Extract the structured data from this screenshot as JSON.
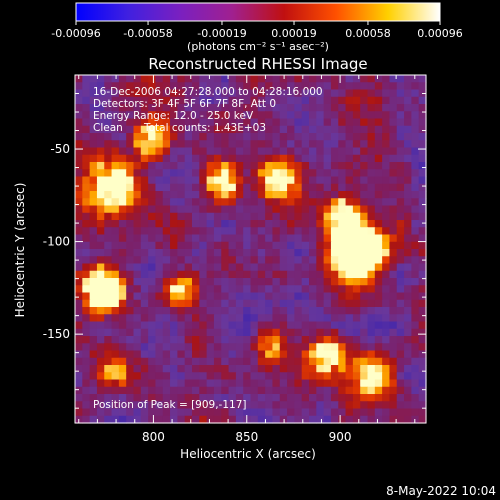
{
  "colorbar": {
    "tick_labels": [
      "-0.00096",
      "-0.00058",
      "-0.00019",
      "0.00019",
      "0.00058",
      "0.00096"
    ],
    "tick_values": [
      -0.00096,
      -0.00058,
      -0.00019,
      0.00019,
      0.00058,
      0.00096
    ],
    "range": [
      -0.00096,
      0.00096
    ],
    "unit_label": "(photons cm⁻² s⁻¹ asec⁻²)",
    "gradient_colors": [
      "#0000ff",
      "#4020e0",
      "#7a20c0",
      "#a02090",
      "#c01010",
      "#ff5000",
      "#ffd000",
      "#ffffff"
    ]
  },
  "chart_data": {
    "type": "heatmap",
    "title": "Reconstructed RHESSI Image",
    "xlabel": "Heliocentric X (arcsec)",
    "ylabel": "Heliocentric Y (arcsec)",
    "xlim": [
      758,
      946
    ],
    "ylim": [
      -198,
      -10
    ],
    "x_ticks": [
      800,
      850,
      900
    ],
    "x_tick_labels": [
      "800",
      "850",
      "900"
    ],
    "y_ticks": [
      -50,
      -100,
      -150
    ],
    "y_tick_labels": [
      "-50",
      "-100",
      "-150"
    ],
    "annotations": {
      "time_range": "16-Dec-2006 04:27:28.000 to 04:28:16.000",
      "detectors": "Detectors: 3F 4F 5F 6F 7F 8F, Att 0",
      "energy_range": "Energy Range: 12.0 - 25.0 keV",
      "method": "Clean",
      "total_counts": "Total counts: 1.43E+03",
      "peak_position": "Position of Peak = [909,-117]"
    },
    "peak": {
      "x": 909,
      "y": -117
    },
    "grid": false
  },
  "footer": {
    "date": "8-May-2022 10:04"
  }
}
